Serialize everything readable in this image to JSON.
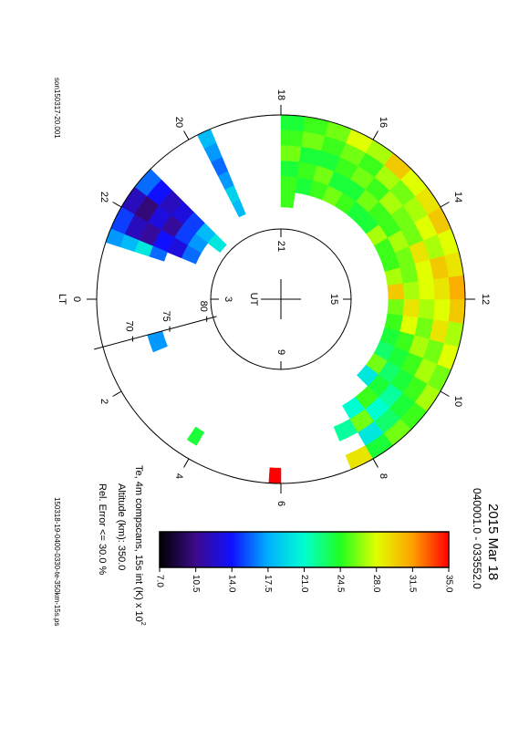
{
  "chart_data": {
    "type": "polar-heatmap",
    "title": "2015 Mar 18",
    "subtitle": "040001.0 - 033552.0",
    "source_file": "son150317-20.001",
    "output_file": "150318-19-0400-0330-te-350km-15s.ps",
    "colorbar_label": "Te, 4m compscans, 15s int (K) x 10",
    "colorbar_label_exponent": "2",
    "notes": [
      "Altitude (km): 350.0",
      "Rel. Error <= 30.0 %"
    ],
    "lt_label": "LT",
    "ut_label": "UT",
    "lt_ticks": [
      0,
      2,
      4,
      6,
      8,
      10,
      12,
      14,
      16,
      18,
      20,
      22
    ],
    "ut_ticks": [
      {
        "value": 0,
        "label": "3"
      },
      {
        "value": 6,
        "label": "9"
      },
      {
        "value": 12,
        "label": "15"
      },
      {
        "value": 18,
        "label": "21"
      }
    ],
    "rlim": [
      90,
      66
    ],
    "rticks": [
      70,
      75,
      80
    ],
    "el_bins": [
      66,
      68,
      70,
      72,
      74,
      76,
      78,
      80
    ],
    "cells": [
      {
        "lt": [
          7.5,
          8.0
        ],
        "values": [
          29,
          null,
          22,
          null,
          null,
          null,
          null
        ]
      },
      {
        "lt": [
          8.0,
          8.5
        ],
        "values": [
          24,
          20,
          26,
          21,
          null,
          null,
          null
        ]
      },
      {
        "lt": [
          8.5,
          9.0
        ],
        "values": [
          26,
          23,
          21,
          25,
          null,
          null,
          null
        ]
      },
      {
        "lt": [
          9.0,
          9.5
        ],
        "values": [
          25,
          24,
          22,
          24,
          20,
          null,
          null
        ]
      },
      {
        "lt": [
          9.5,
          10.0
        ],
        "values": [
          27,
          25,
          24,
          23,
          26,
          null,
          null
        ]
      },
      {
        "lt": [
          10.0,
          10.5
        ],
        "values": [
          26,
          27,
          25,
          24,
          23,
          null,
          null
        ]
      },
      {
        "lt": [
          10.5,
          11.0
        ],
        "values": [
          28,
          26,
          27,
          25,
          24,
          null,
          null
        ]
      },
      {
        "lt": [
          11.0,
          11.5
        ],
        "values": [
          27,
          29,
          26,
          28,
          25,
          null,
          null
        ]
      },
      {
        "lt": [
          11.5,
          12.0
        ],
        "values": [
          30,
          28,
          27,
          29,
          26,
          null,
          null
        ]
      },
      {
        "lt": [
          12.0,
          12.5
        ],
        "values": [
          31,
          29,
          28,
          27,
          30,
          null,
          null
        ]
      },
      {
        "lt": [
          12.5,
          13.0
        ],
        "values": [
          29,
          30,
          28,
          26,
          27,
          null,
          null
        ]
      },
      {
        "lt": [
          13.0,
          13.5
        ],
        "values": [
          28,
          27,
          29,
          26,
          25,
          null,
          null
        ]
      },
      {
        "lt": [
          13.5,
          14.0
        ],
        "values": [
          30,
          28,
          26,
          27,
          25,
          null,
          null
        ]
      },
      {
        "lt": [
          14.0,
          14.5
        ],
        "values": [
          29,
          27,
          26,
          25,
          27,
          null,
          null
        ]
      },
      {
        "lt": [
          14.5,
          15.0
        ],
        "values": [
          28,
          26,
          27,
          25,
          24,
          null,
          null
        ]
      },
      {
        "lt": [
          15.0,
          15.5
        ],
        "values": [
          30,
          27,
          25,
          26,
          24,
          null,
          null
        ]
      },
      {
        "lt": [
          15.5,
          16.0
        ],
        "values": [
          27,
          25,
          26,
          24,
          25,
          null,
          null
        ]
      },
      {
        "lt": [
          16.0,
          16.5
        ],
        "values": [
          28,
          26,
          25,
          24,
          26,
          null,
          null
        ]
      },
      {
        "lt": [
          16.5,
          17.0
        ],
        "values": [
          26,
          25,
          24,
          26,
          25,
          null,
          null
        ]
      },
      {
        "lt": [
          17.0,
          17.5
        ],
        "values": [
          25,
          26,
          24,
          25,
          24,
          null,
          null
        ]
      },
      {
        "lt": [
          17.5,
          18.0
        ],
        "values": [
          24,
          25,
          26,
          24,
          25,
          25,
          null
        ]
      },
      {
        "lt": [
          19.5,
          19.8
        ],
        "values": [
          18,
          17,
          16,
          17,
          19,
          18,
          null
        ]
      },
      {
        "lt": [
          21.0,
          21.5
        ],
        "values": [
          16,
          14,
          12,
          13,
          15,
          18,
          20
        ]
      },
      {
        "lt": [
          21.5,
          22.0
        ],
        "values": [
          12,
          10,
          13,
          11,
          15,
          17,
          null
        ]
      },
      {
        "lt": [
          22.0,
          22.5
        ],
        "values": [
          15,
          12,
          11,
          14,
          13,
          16,
          null
        ]
      },
      {
        "lt": [
          22.5,
          22.8
        ],
        "values": [
          17,
          18,
          20,
          16,
          null,
          null,
          null
        ]
      },
      {
        "lt": [
          1.0,
          1.5
        ],
        "values": [
          null,
          null,
          null,
          17,
          null,
          null,
          null
        ]
      },
      {
        "lt": [
          3.75,
          4.0
        ],
        "values": [
          null,
          24,
          null,
          null,
          null,
          null,
          null
        ]
      },
      {
        "lt": [
          5.75,
          6.0
        ],
        "values": [
          35,
          null,
          null,
          null,
          null,
          null,
          null
        ]
      }
    ],
    "colorbar": {
      "lim": [
        7,
        35
      ],
      "ticks": [
        {
          "value": 7,
          "label": "7.0"
        },
        {
          "value": 10.5,
          "label": "10.5"
        },
        {
          "value": 14,
          "label": "14.0"
        },
        {
          "value": 17.5,
          "label": "17.5"
        },
        {
          "value": 21,
          "label": "21.0"
        },
        {
          "value": 24.5,
          "label": "24.5"
        },
        {
          "value": 28,
          "label": "28.0"
        },
        {
          "value": 31.5,
          "label": "31.5"
        },
        {
          "value": 35,
          "label": "35.0"
        }
      ],
      "colors": [
        "#000000",
        "#3c0a8c",
        "#1010ff",
        "#00b0ff",
        "#00ffd0",
        "#20ff20",
        "#e0ff00",
        "#ffa000",
        "#ff0000"
      ]
    }
  }
}
